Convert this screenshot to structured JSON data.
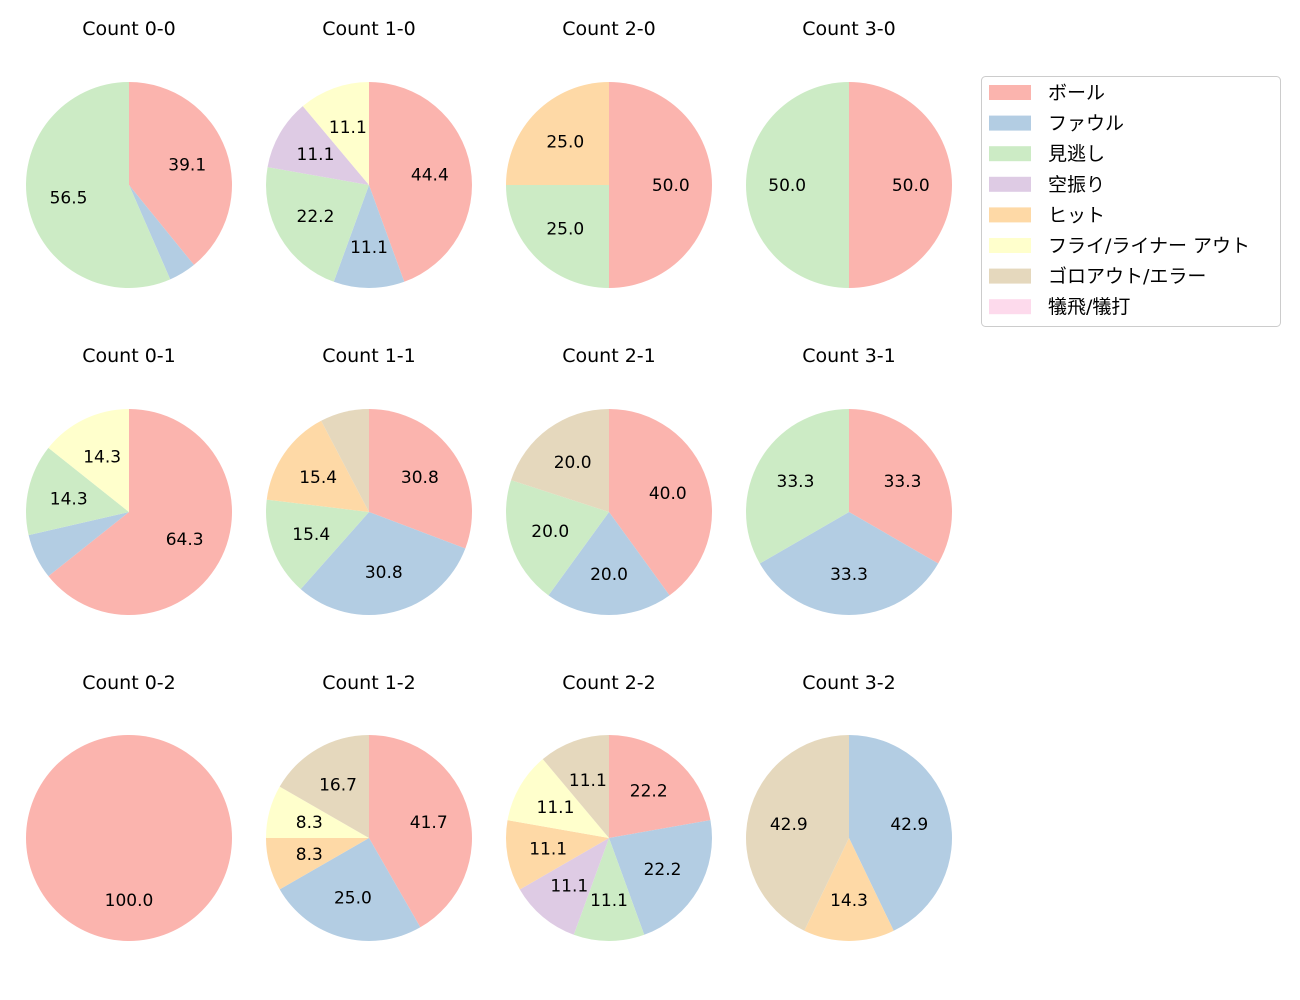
{
  "chart_data": {
    "type": "pie",
    "categories": [
      "ボール",
      "ファウル",
      "見逃し",
      "空振り",
      "ヒット",
      "フライ/ライナー アウト",
      "ゴロアウト/エラー",
      "犠飛/犠打"
    ],
    "colors": [
      "#fbb4ae",
      "#b3cde3",
      "#ccebc5",
      "#decbe4",
      "#fed9a6",
      "#ffffcc",
      "#e5d8bd",
      "#fddaec"
    ],
    "legend_placement": "top-right",
    "start_angle": 90,
    "direction": "clockwise",
    "pies": [
      {
        "title": "Count 0-0",
        "values": [
          39.1,
          4.3,
          56.5,
          0,
          0,
          0,
          0,
          0
        ]
      },
      {
        "title": "Count 1-0",
        "values": [
          44.4,
          11.1,
          22.2,
          11.1,
          0,
          11.1,
          0,
          0
        ]
      },
      {
        "title": "Count 2-0",
        "values": [
          50.0,
          0,
          25.0,
          0,
          25.0,
          0,
          0,
          0
        ]
      },
      {
        "title": "Count 3-0",
        "values": [
          50.0,
          0,
          50.0,
          0,
          0,
          0,
          0,
          0
        ]
      },
      {
        "title": "Count 0-1",
        "values": [
          64.3,
          7.1,
          14.3,
          0,
          0,
          14.3,
          0,
          0
        ]
      },
      {
        "title": "Count 1-1",
        "values": [
          30.8,
          30.8,
          15.4,
          0,
          15.4,
          0,
          7.7,
          0
        ]
      },
      {
        "title": "Count 2-1",
        "values": [
          40.0,
          20.0,
          20.0,
          0,
          0,
          0,
          20.0,
          0
        ]
      },
      {
        "title": "Count 3-1",
        "values": [
          33.3,
          33.3,
          33.3,
          0,
          0,
          0,
          0,
          0
        ]
      },
      {
        "title": "Count 0-2",
        "values": [
          100.0,
          0,
          0,
          0,
          0,
          0,
          0,
          0
        ]
      },
      {
        "title": "Count 1-2",
        "values": [
          41.7,
          25.0,
          0,
          0,
          8.3,
          8.3,
          16.7,
          0
        ]
      },
      {
        "title": "Count 2-2",
        "values": [
          22.2,
          22.2,
          11.1,
          11.1,
          11.1,
          11.1,
          11.1,
          0
        ]
      },
      {
        "title": "Count 3-2",
        "values": [
          0,
          42.9,
          0,
          0,
          14.3,
          0,
          42.9,
          0
        ]
      }
    ]
  }
}
